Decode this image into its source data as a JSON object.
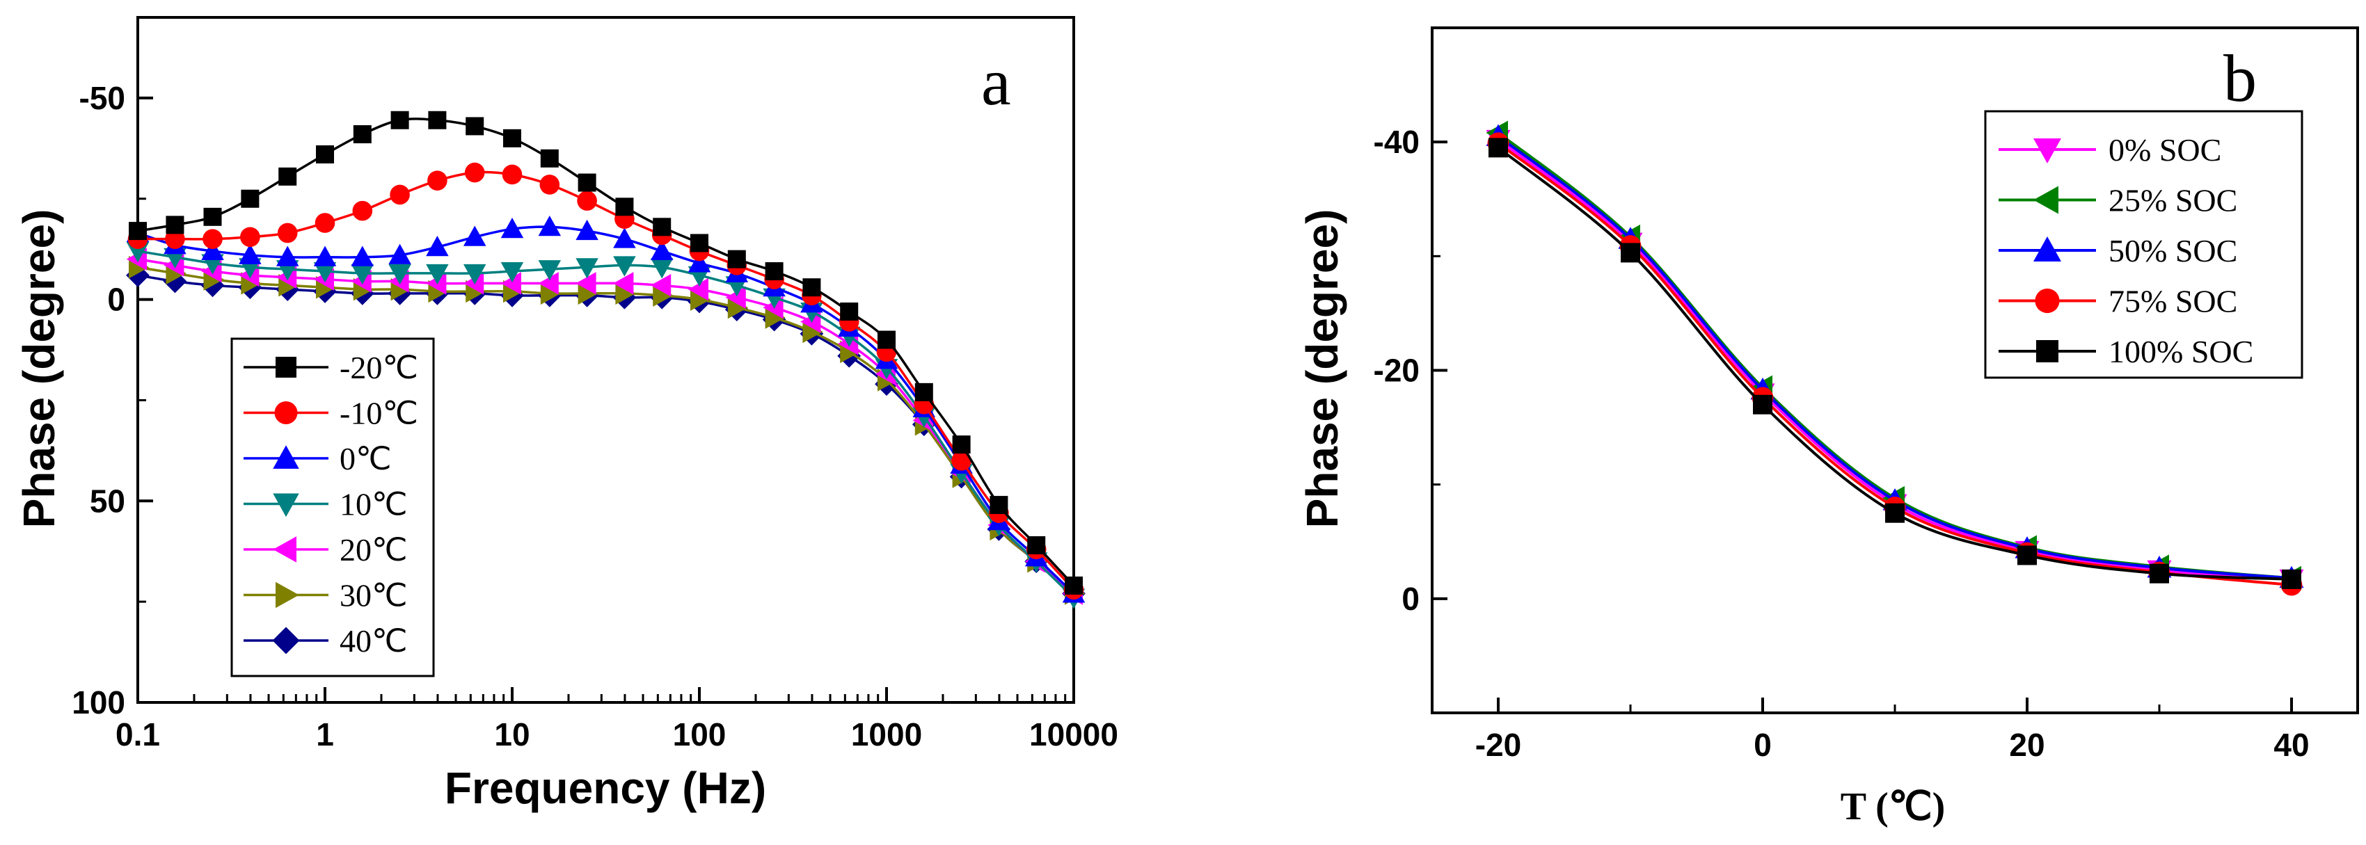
{
  "chart_data": [
    {
      "type": "line",
      "panel": "a",
      "xlabel": "Frequency (Hz)",
      "ylabel": "Phase (degree)",
      "xscale": "log",
      "xlim": [
        0.1,
        10000
      ],
      "ylim": [
        -70,
        100
      ],
      "y_inverted": true,
      "x_ticks": [
        0.1,
        1,
        10,
        100,
        1000,
        10000
      ],
      "x_tick_labels": [
        "0.1",
        "1",
        "10",
        "100",
        "1000",
        "10000"
      ],
      "y_ticks": [
        -50,
        0,
        50,
        100
      ],
      "y_tick_labels": [
        "-50",
        "0",
        "50",
        "100"
      ],
      "legend_position": "lower-left",
      "x": [
        0.1,
        0.158,
        0.251,
        0.398,
        0.631,
        1,
        1.585,
        2.512,
        3.981,
        6.31,
        10,
        15.85,
        25.12,
        39.81,
        63.1,
        100,
        158.5,
        251.2,
        398.1,
        631,
        1000,
        1585,
        2512,
        3981,
        6310,
        10000
      ],
      "series": [
        {
          "name": "-20℃",
          "color": "#000000",
          "marker": "square",
          "values": [
            -17,
            -18.5,
            -20.5,
            -25,
            -30.5,
            -36,
            -41,
            -44.5,
            -44.5,
            -43,
            -40,
            -35,
            -29,
            -23,
            -18,
            -14,
            -10,
            -7,
            -3,
            3,
            10,
            23,
            36,
            51,
            61,
            71
          ]
        },
        {
          "name": "-10℃",
          "color": "#ff0000",
          "marker": "circle",
          "values": [
            -15,
            -15,
            -15,
            -15.5,
            -16.5,
            -19,
            -22,
            -26,
            -29.5,
            -31.5,
            -31,
            -28.5,
            -24.5,
            -20,
            -16,
            -12,
            -8.5,
            -5,
            -1,
            5.5,
            13,
            26,
            40,
            53,
            62,
            72
          ]
        },
        {
          "name": "0℃",
          "color": "#0000ff",
          "marker": "triangle-up",
          "values": [
            -16.5,
            -13.5,
            -12,
            -11,
            -10.5,
            -10.5,
            -10.5,
            -11,
            -13,
            -15.5,
            -17.5,
            -18,
            -17,
            -15,
            -12,
            -9,
            -6.5,
            -3,
            1,
            7,
            15,
            27,
            41,
            55,
            64,
            73
          ]
        },
        {
          "name": "10℃",
          "color": "#008080",
          "marker": "triangle-down",
          "values": [
            -12,
            -10.5,
            -9,
            -8,
            -7.5,
            -7,
            -6.5,
            -6.5,
            -6.5,
            -6.5,
            -7,
            -7.5,
            -8,
            -8.5,
            -8,
            -6,
            -3.5,
            -0.5,
            3,
            9,
            17,
            29,
            43,
            56,
            65,
            74
          ]
        },
        {
          "name": "20℃",
          "color": "#ff00ff",
          "marker": "triangle-left",
          "values": [
            -10,
            -8.5,
            -7,
            -6,
            -5.5,
            -5,
            -4.5,
            -4.5,
            -4,
            -4,
            -4,
            -4,
            -4,
            -4,
            -3.5,
            -2.5,
            -0.5,
            2,
            5.5,
            11,
            18.5,
            30,
            43,
            56,
            65,
            73
          ]
        },
        {
          "name": "30℃",
          "color": "#808000",
          "marker": "triangle-right",
          "values": [
            -8,
            -6.5,
            -5,
            -4,
            -3.5,
            -3,
            -2.5,
            -2.5,
            -2,
            -2,
            -2,
            -1.5,
            -1.5,
            -1.5,
            -1,
            0,
            2,
            4.5,
            8,
            13,
            20,
            31,
            44,
            57,
            65,
            73
          ]
        },
        {
          "name": "40℃",
          "color": "#00008b",
          "marker": "diamond",
          "values": [
            -6,
            -4.5,
            -3.5,
            -3,
            -2.5,
            -2,
            -1.5,
            -1.5,
            -1.5,
            -1.5,
            -1,
            -1,
            -1,
            -0.5,
            -0.5,
            0.5,
            2.5,
            5,
            8.5,
            14,
            21,
            31,
            44,
            57,
            65,
            73
          ]
        }
      ]
    },
    {
      "type": "line",
      "panel": "b",
      "xlabel": "T (℃)",
      "ylabel": "Phase (degree)",
      "xlim": [
        -25,
        45
      ],
      "ylim": [
        -50,
        10
      ],
      "y_inverted": true,
      "x_ticks": [
        -20,
        0,
        20,
        40
      ],
      "x_tick_labels": [
        "-20",
        "0",
        "20",
        "40"
      ],
      "y_ticks": [
        -40,
        -20,
        0
      ],
      "y_tick_labels": [
        "-40",
        "-20",
        "0"
      ],
      "legend_position": "top-right",
      "x": [
        -20,
        -10,
        0,
        10,
        20,
        30,
        40
      ],
      "series": [
        {
          "name": "0% SOC",
          "color": "#ff00ff",
          "marker": "triangle-down",
          "values": [
            -40.2,
            -31.2,
            -18.0,
            -8.3,
            -4.2,
            -2.5,
            -1.7
          ]
        },
        {
          "name": "25% SOC",
          "color": "#008000",
          "marker": "triangle-left",
          "values": [
            -40.8,
            -31.7,
            -18.5,
            -8.8,
            -4.5,
            -2.8,
            -1.8
          ]
        },
        {
          "name": "50% SOC",
          "color": "#0000ff",
          "marker": "triangle-up",
          "values": [
            -40.5,
            -31.5,
            -18.3,
            -8.6,
            -4.4,
            -2.7,
            -1.8
          ]
        },
        {
          "name": "75% SOC",
          "color": "#ff0000",
          "marker": "circle",
          "values": [
            -39.9,
            -30.9,
            -17.6,
            -8.0,
            -4.0,
            -2.3,
            -1.2
          ]
        },
        {
          "name": "100% SOC",
          "color": "#000000",
          "marker": "square",
          "values": [
            -39.5,
            -30.3,
            -17.0,
            -7.5,
            -3.8,
            -2.2,
            -1.7
          ]
        }
      ]
    }
  ],
  "panels": [
    {
      "label": "a"
    },
    {
      "label": "b"
    }
  ]
}
